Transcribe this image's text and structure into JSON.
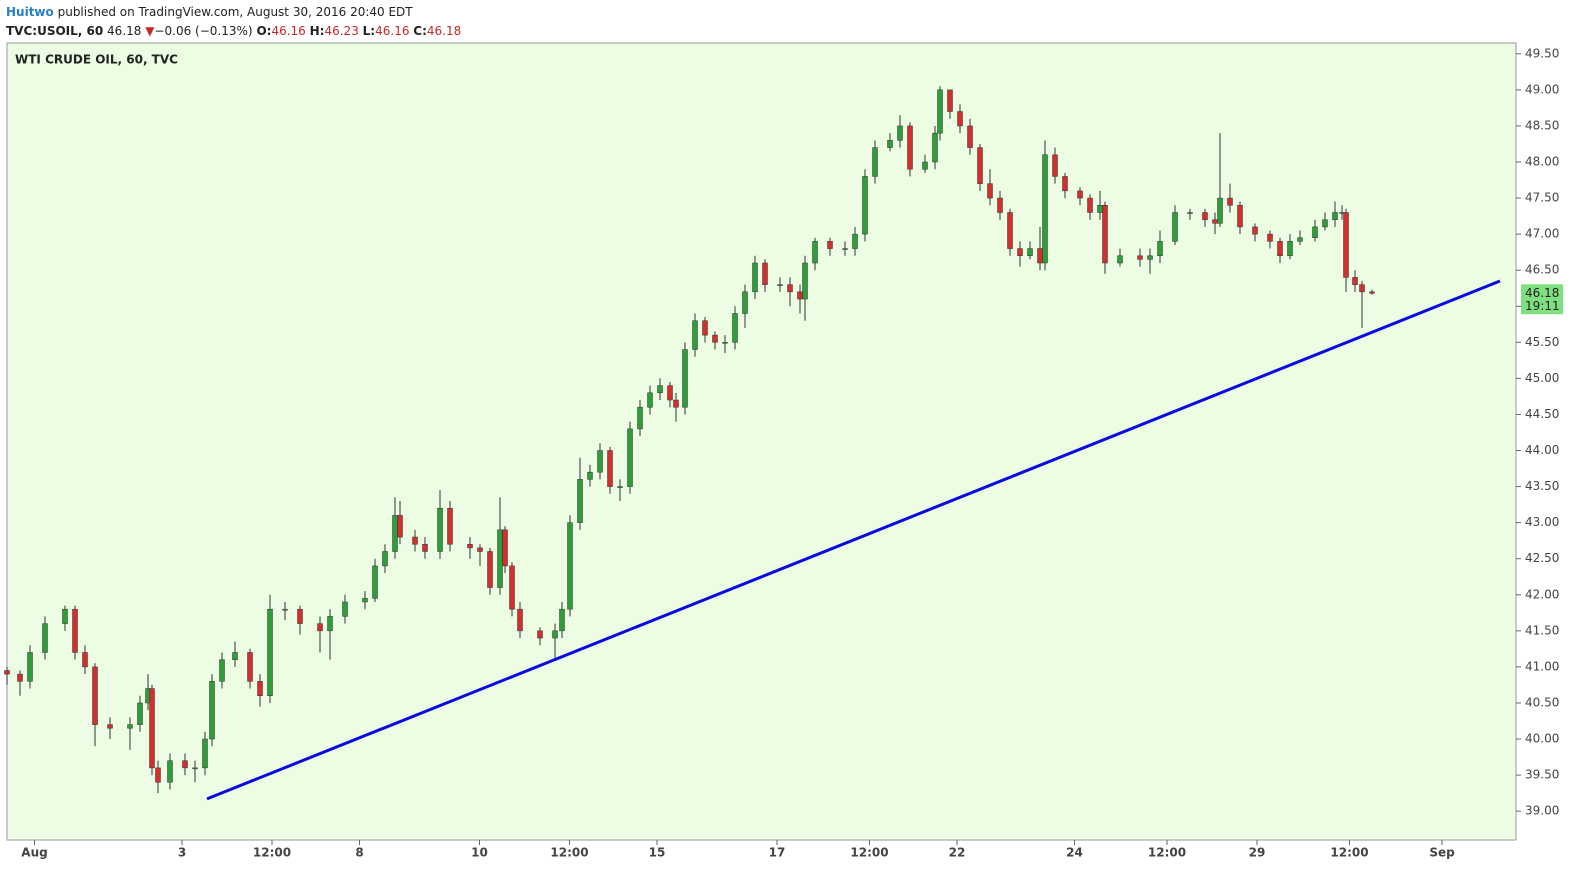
{
  "header": {
    "author": "Huitwo",
    "published": "published on TradingView.com, August 30, 2016 20:40 EDT",
    "symbol": "TVC:USOIL, 60",
    "price": "46.18",
    "arrow": "▼",
    "change": "−0.06 (−0.13%)",
    "open_label": "O:",
    "open": "46.16",
    "high_label": "H:",
    "high": "46.23",
    "low_label": "L:",
    "low": "46.16",
    "close_label": "C:",
    "close": "46.18"
  },
  "chart_data": {
    "type": "candlestick",
    "title": "WTI CRUDE OIL, 60, TVC",
    "up_color": "#2e9e3a",
    "down_color": "#d32f2f",
    "background": "#ecfde3",
    "last_price_label": "46.18",
    "countdown": "19:11",
    "last_price_color": "#7fe07f",
    "x": [
      0,
      5.2,
      9.2,
      15.2,
      23.2,
      27.2,
      31.2,
      35.2,
      41.2,
      49.2,
      53.2,
      56.4,
      58,
      60.4,
      65.2,
      71.2,
      75.2,
      79.2,
      82,
      86,
      91.2,
      97.2,
      101.2,
      105.2,
      111.2,
      117.2,
      125.2,
      129.2,
      135.2,
      143.2,
      147.2,
      151.2,
      155.2,
      157.2,
      163.2,
      167.2,
      173.2,
      177.2,
      185.2,
      189.2,
      193.2,
      197.2,
      199.2,
      202,
      205.2,
      213.2,
      219.2,
      222,
      225.2,
      229.2,
      233.2,
      237.2,
      241.2,
      245.2,
      249.2,
      253.2,
      257.2,
      261.2,
      265.2,
      267.6,
      271.2,
      275.2,
      279.2,
      283.2,
      287.2,
      291.2,
      295.2,
      299.2,
      303.2,
      309.2,
      313.2,
      317.2,
      319.2,
      323.2,
      329.2,
      335.2,
      339.2,
      343.2,
      347.2,
      353.2,
      357.2,
      361.2,
      367.2,
      371.2,
      373.2,
      377.2,
      381.2,
      385.2,
      389.2,
      393.2,
      397.2,
      401.2,
      405.2,
      409.2,
      413.2,
      415.2,
      419.2,
      423.2,
      429.2,
      433.2,
      437.2,
      439.2,
      445.2,
      453.2,
      457.2,
      461.2,
      467.2,
      473.2,
      479.2,
      483.2,
      485.2,
      489.2,
      493.2,
      499.2,
      505.2,
      509.2,
      513.2,
      517.2,
      523.2,
      527.2,
      531.2,
      534,
      535.6,
      539.2,
      542,
      546
    ],
    "open": [
      40.95,
      40.9,
      40.8,
      41.2,
      41.6,
      41.8,
      41.2,
      41.0,
      40.2,
      40.15,
      40.2,
      40.5,
      40.7,
      39.6,
      39.4,
      39.7,
      39.6,
      39.6,
      40.0,
      40.8,
      41.1,
      41.2,
      40.8,
      40.6,
      41.8,
      41.8,
      41.6,
      41.5,
      41.7,
      41.9,
      41.95,
      42.4,
      42.6,
      43.1,
      42.8,
      42.7,
      42.6,
      43.2,
      42.7,
      42.65,
      42.6,
      42.1,
      42.9,
      42.4,
      41.8,
      41.5,
      41.4,
      41.5,
      41.8,
      43.0,
      43.6,
      43.7,
      44.0,
      43.5,
      43.5,
      44.3,
      44.6,
      44.8,
      44.9,
      44.7,
      44.6,
      45.4,
      45.8,
      45.6,
      45.5,
      45.5,
      45.9,
      46.2,
      46.6,
      46.3,
      46.3,
      46.2,
      46.1,
      46.6,
      46.9,
      46.8,
      46.8,
      47.0,
      47.8,
      48.2,
      48.3,
      48.5,
      47.9,
      48.0,
      48.4,
      49.0,
      48.7,
      48.5,
      48.2,
      47.7,
      47.5,
      47.3,
      46.8,
      46.7,
      46.8,
      46.6,
      48.1,
      47.8,
      47.6,
      47.5,
      47.3,
      47.4,
      46.6,
      46.7,
      46.65,
      46.7,
      46.9,
      47.3,
      47.3,
      47.2,
      47.15,
      47.5,
      47.4,
      47.1,
      47.0,
      46.9,
      46.7,
      46.9,
      46.95,
      47.1,
      47.2,
      47.3,
      47.3,
      46.4,
      46.3,
      46.2
    ],
    "high": [
      41.0,
      40.95,
      41.3,
      41.7,
      41.85,
      41.85,
      41.3,
      41.05,
      40.3,
      40.3,
      40.6,
      40.9,
      40.75,
      39.7,
      39.8,
      39.8,
      39.7,
      40.1,
      40.9,
      41.2,
      41.35,
      41.25,
      40.9,
      42.0,
      41.9,
      41.85,
      41.7,
      41.8,
      42.0,
      42.05,
      42.5,
      42.7,
      43.35,
      43.3,
      42.9,
      42.8,
      43.45,
      43.3,
      42.8,
      42.7,
      42.65,
      43.35,
      42.95,
      42.45,
      41.9,
      41.55,
      41.6,
      41.9,
      43.1,
      43.9,
      43.8,
      44.1,
      44.05,
      43.6,
      44.4,
      44.7,
      44.9,
      45.0,
      44.95,
      44.8,
      45.5,
      45.9,
      45.85,
      45.65,
      45.6,
      46.0,
      46.3,
      46.7,
      46.65,
      46.4,
      46.4,
      46.3,
      46.7,
      46.95,
      46.95,
      46.9,
      47.1,
      47.9,
      48.3,
      48.4,
      48.65,
      48.55,
      48.1,
      48.5,
      49.05,
      49.0,
      48.8,
      48.6,
      48.25,
      47.9,
      47.6,
      47.35,
      46.9,
      46.9,
      47.1,
      48.3,
      48.2,
      47.85,
      47.65,
      47.55,
      47.6,
      47.45,
      46.8,
      46.8,
      46.8,
      47.05,
      47.4,
      47.35,
      47.35,
      47.3,
      48.4,
      47.7,
      47.45,
      47.15,
      47.05,
      46.95,
      47.0,
      47.05,
      47.2,
      47.3,
      47.45,
      47.4,
      47.35,
      46.5,
      46.35,
      46.23
    ],
    "low": [
      40.75,
      40.6,
      40.7,
      41.1,
      41.5,
      41.1,
      40.9,
      39.9,
      40.0,
      39.85,
      40.1,
      40.4,
      39.5,
      39.25,
      39.3,
      39.5,
      39.4,
      39.5,
      39.9,
      40.7,
      41.0,
      40.7,
      40.45,
      40.5,
      41.65,
      41.45,
      41.2,
      41.1,
      41.6,
      41.8,
      41.9,
      42.3,
      42.5,
      42.7,
      42.6,
      42.5,
      42.5,
      42.6,
      42.5,
      42.4,
      42.0,
      42.0,
      42.3,
      41.7,
      41.4,
      41.3,
      41.1,
      41.4,
      41.7,
      42.9,
      43.5,
      43.6,
      43.4,
      43.3,
      43.4,
      44.2,
      44.5,
      44.7,
      44.6,
      44.4,
      44.5,
      45.3,
      45.5,
      45.4,
      45.35,
      45.4,
      45.7,
      46.1,
      46.2,
      46.2,
      46.0,
      45.9,
      45.8,
      46.5,
      46.7,
      46.7,
      46.7,
      46.9,
      47.7,
      48.15,
      48.2,
      47.8,
      47.85,
      47.9,
      48.3,
      48.6,
      48.4,
      48.1,
      47.6,
      47.4,
      47.2,
      46.7,
      46.55,
      46.65,
      46.5,
      46.5,
      47.7,
      47.5,
      47.4,
      47.2,
      47.2,
      46.45,
      46.55,
      46.55,
      46.45,
      46.6,
      46.85,
      47.2,
      47.1,
      47.0,
      47.1,
      47.3,
      47.0,
      46.9,
      46.8,
      46.6,
      46.65,
      46.85,
      46.9,
      47.05,
      47.1,
      47.2,
      46.2,
      46.2,
      45.7,
      46.16
    ],
    "close": [
      40.9,
      40.8,
      41.2,
      41.6,
      41.8,
      41.2,
      41.0,
      40.2,
      40.15,
      40.2,
      40.5,
      40.7,
      39.6,
      39.4,
      39.7,
      39.6,
      39.6,
      40.0,
      40.8,
      41.1,
      41.2,
      40.8,
      40.6,
      41.8,
      41.8,
      41.6,
      41.5,
      41.7,
      41.9,
      41.95,
      42.4,
      42.6,
      43.1,
      42.8,
      42.7,
      42.6,
      43.2,
      42.7,
      42.65,
      42.6,
      42.1,
      42.9,
      42.4,
      41.8,
      41.5,
      41.4,
      41.5,
      41.8,
      43.0,
      43.6,
      43.7,
      44.0,
      43.5,
      43.5,
      44.3,
      44.6,
      44.8,
      44.9,
      44.7,
      44.6,
      45.4,
      45.8,
      45.6,
      45.5,
      45.5,
      45.9,
      46.2,
      46.6,
      46.3,
      46.3,
      46.2,
      46.1,
      46.6,
      46.9,
      46.8,
      46.8,
      47.0,
      47.8,
      48.2,
      48.3,
      48.5,
      47.9,
      48.0,
      48.4,
      49.0,
      48.7,
      48.5,
      48.2,
      47.7,
      47.5,
      47.3,
      46.8,
      46.7,
      46.8,
      46.6,
      48.1,
      47.8,
      47.6,
      47.5,
      47.3,
      47.4,
      46.6,
      46.7,
      46.65,
      46.7,
      46.9,
      47.3,
      47.3,
      47.2,
      47.15,
      47.5,
      47.4,
      47.1,
      47.0,
      46.9,
      46.7,
      46.9,
      46.95,
      47.1,
      47.2,
      47.3,
      47.3,
      46.4,
      46.3,
      46.2,
      46.18
    ],
    "trendline": {
      "x": [
        80,
        597.2
      ],
      "y": [
        39.17,
        46.35
      ],
      "color": "#0a0ae0"
    },
    "xlim": [
      0,
      603.6
    ],
    "xticks": [
      {
        "value": 11,
        "label": "Aug"
      },
      {
        "value": 70,
        "label": "3"
      },
      {
        "value": 106,
        "label": "12:00"
      },
      {
        "value": 141,
        "label": "8"
      },
      {
        "value": 189,
        "label": "10"
      },
      {
        "value": 225,
        "label": "12:00"
      },
      {
        "value": 260,
        "label": "15"
      },
      {
        "value": 308,
        "label": "17"
      },
      {
        "value": 345,
        "label": "12:00"
      },
      {
        "value": 380,
        "label": "22"
      },
      {
        "value": 427,
        "label": "24"
      },
      {
        "value": 464,
        "label": "12:00"
      },
      {
        "value": 500,
        "label": "29"
      },
      {
        "value": 537,
        "label": "12:00"
      },
      {
        "value": 574,
        "label": "Sep"
      }
    ],
    "ylim": [
      38.6,
      49.65
    ],
    "yticks": [
      {
        "value": 39,
        "label": "39.00"
      },
      {
        "value": 39.5,
        "label": "39.50"
      },
      {
        "value": 40,
        "label": "40.00"
      },
      {
        "value": 40.5,
        "label": "40.50"
      },
      {
        "value": 41,
        "label": "41.00"
      },
      {
        "value": 41.5,
        "label": "41.50"
      },
      {
        "value": 42,
        "label": "42.00"
      },
      {
        "value": 42.5,
        "label": "42.50"
      },
      {
        "value": 43,
        "label": "43.00"
      },
      {
        "value": 43.5,
        "label": "43.50"
      },
      {
        "value": 44,
        "label": "44.00"
      },
      {
        "value": 44.5,
        "label": "44.50"
      },
      {
        "value": 45,
        "label": "45.00"
      },
      {
        "value": 45.5,
        "label": "45.50"
      },
      {
        "value": 46,
        "label": "46.00"
      },
      {
        "value": 46.5,
        "label": "46.50"
      },
      {
        "value": 47,
        "label": "47.00"
      },
      {
        "value": 47.5,
        "label": "47.50"
      },
      {
        "value": 48,
        "label": "48.00"
      },
      {
        "value": 48.5,
        "label": "48.50"
      },
      {
        "value": 49,
        "label": "49.00"
      },
      {
        "value": 49.5,
        "label": "49.50"
      }
    ]
  }
}
